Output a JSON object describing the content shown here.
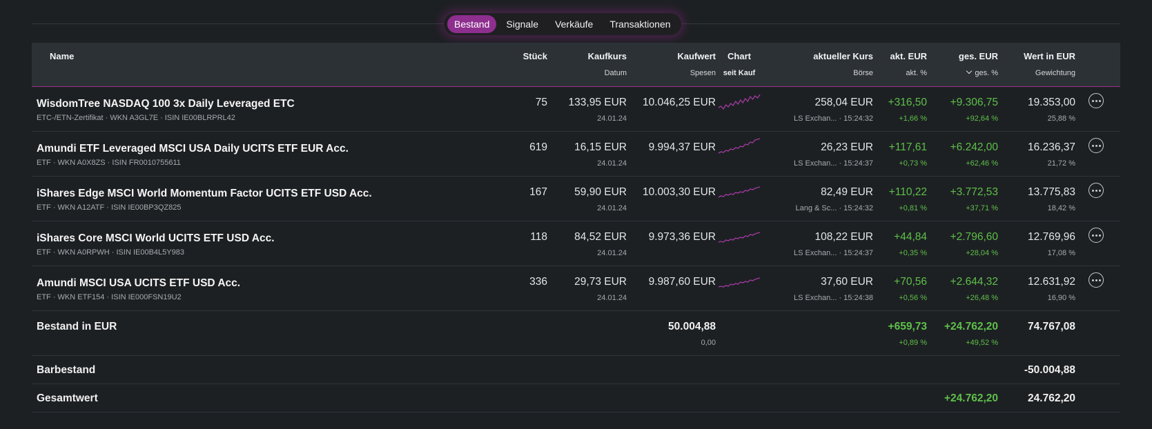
{
  "tabs": [
    "Bestand",
    "Signale",
    "Verkäufe",
    "Transaktionen"
  ],
  "active_tab": 0,
  "header": {
    "name": "Name",
    "stueck": "Stück",
    "kaufkurs": "Kaufkurs",
    "datum": "Datum",
    "kaufwert": "Kaufwert",
    "spesen": "Spesen",
    "chart": "Chart",
    "seit_kauf": "seit Kauf",
    "kurs": "aktueller Kurs",
    "boerse": "Börse",
    "akt_eur": "akt. EUR",
    "akt_pct": "akt. %",
    "ges_eur": "ges. EUR",
    "ges_pct": "ges. %",
    "wert": "Wert in EUR",
    "gewichtung": "Gewichtung"
  },
  "rows": [
    {
      "name": "WisdomTree NASDAQ 100 3x Daily Leveraged ETC",
      "sub": "ETC-/ETN-Zertifikat · WKN A3GL7E · ISIN IE00BLRPRL42",
      "stueck": "75",
      "kaufkurs": "133,95 EUR",
      "datum": "24.01.24",
      "kaufwert": "10.046,25 EUR",
      "kurs": "258,04 EUR",
      "boerse": "LS Exchan... · 15:24:32",
      "akt_eur": "+316,50",
      "akt_pct": "+1,66 %",
      "ges_eur": "+9.306,75",
      "ges_pct": "+92,64 %",
      "wert": "19.353,00",
      "gewichtung": "25,88 %",
      "spark": [
        22,
        24,
        20,
        26,
        23,
        28,
        25,
        31,
        27,
        33,
        29,
        35,
        31,
        38,
        34,
        39,
        36,
        41
      ]
    },
    {
      "name": "Amundi ETF Leveraged MSCI USA Daily UCITS ETF EUR Acc.",
      "sub": "ETF · WKN A0X8ZS · ISIN FR0010755611",
      "stueck": "619",
      "kaufkurs": "16,15 EUR",
      "datum": "24.01.24",
      "kaufwert": "9.994,37 EUR",
      "kurs": "26,23 EUR",
      "boerse": "LS Exchan... · 15:24:37",
      "akt_eur": "+117,61",
      "akt_pct": "+0,73 %",
      "ges_eur": "+6.242,00",
      "ges_pct": "+62,46 %",
      "wert": "16.236,37",
      "gewichtung": "21,72 %",
      "spark": [
        21,
        23,
        22,
        25,
        24,
        27,
        26,
        29,
        28,
        31,
        30,
        34,
        33,
        37,
        36,
        40,
        41,
        42
      ]
    },
    {
      "name": "iShares Edge MSCI World Momentum Factor UCITS ETF USD Acc.",
      "sub": "ETF · WKN A12ATF · ISIN IE00BP3QZ825",
      "stueck": "167",
      "kaufkurs": "59,90 EUR",
      "datum": "24.01.24",
      "kaufwert": "10.003,30 EUR",
      "kurs": "82,49 EUR",
      "boerse": "Lang & Sc... · 15:24:32",
      "akt_eur": "+110,22",
      "akt_pct": "+0,81 %",
      "ges_eur": "+3.772,53",
      "ges_pct": "+37,71 %",
      "wert": "13.775,83",
      "gewichtung": "18,42 %",
      "spark": [
        22,
        24,
        23,
        26,
        25,
        27,
        26,
        29,
        28,
        30,
        29,
        32,
        31,
        34,
        33,
        35,
        36,
        37
      ]
    },
    {
      "name": "iShares Core MSCI World UCITS ETF USD Acc.",
      "sub": "ETF · WKN A0RPWH · ISIN IE00B4L5Y983",
      "stueck": "118",
      "kaufkurs": "84,52 EUR",
      "datum": "24.01.24",
      "kaufwert": "9.973,36 EUR",
      "kurs": "108,22 EUR",
      "boerse": "LS Exchan... · 15:24:37",
      "akt_eur": "+44,84",
      "akt_pct": "+0,35 %",
      "ges_eur": "+2.796,60",
      "ges_pct": "+28,04 %",
      "wert": "12.769,96",
      "gewichtung": "17,08 %",
      "spark": [
        22,
        23,
        22,
        25,
        24,
        26,
        25,
        28,
        27,
        29,
        28,
        31,
        30,
        33,
        32,
        34,
        35,
        36
      ]
    },
    {
      "name": "Amundi MSCI USA UCITS ETF USD Acc.",
      "sub": "ETF · WKN ETF154 · ISIN IE000FSN19U2",
      "stueck": "336",
      "kaufkurs": "29,73 EUR",
      "datum": "24.01.24",
      "kaufwert": "9.987,60 EUR",
      "kurs": "37,60 EUR",
      "boerse": "LS Exchan... · 15:24:38",
      "akt_eur": "+70,56",
      "akt_pct": "+0,56 %",
      "ges_eur": "+2.644,32",
      "ges_pct": "+26,48 %",
      "wert": "12.631,92",
      "gewichtung": "16,90 %",
      "spark": [
        22,
        23,
        22,
        24,
        23,
        26,
        25,
        27,
        26,
        29,
        28,
        30,
        29,
        32,
        31,
        33,
        34,
        35
      ]
    }
  ],
  "summary": {
    "bestand_label": "Bestand in EUR",
    "kaufwert": "50.004,88",
    "spesen": "0,00",
    "akt_eur": "+659,73",
    "akt_pct": "+0,89 %",
    "ges_eur": "+24.762,20",
    "ges_pct": "+49,52 %",
    "wert": "74.767,08",
    "barbestand_label": "Barbestand",
    "barbestand_wert": "-50.004,88",
    "gesamtwert_label": "Gesamtwert",
    "gesamtwert_ges": "+24.762,20",
    "gesamtwert_wert": "24.762,20"
  },
  "colors": {
    "accent": "#8e2e8f",
    "positive": "#5ec04a",
    "sparkline": "#a23aa0"
  }
}
